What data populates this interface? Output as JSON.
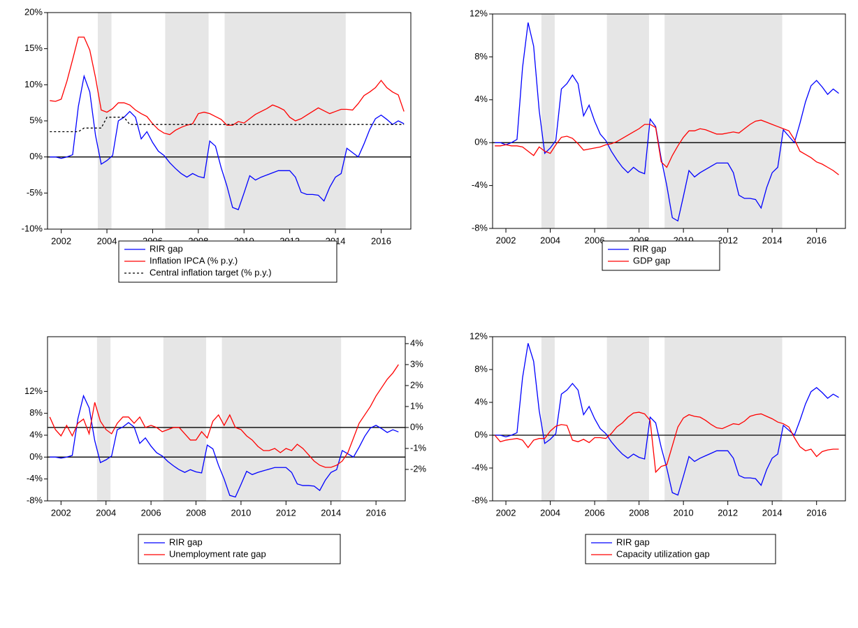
{
  "chart_data": [
    {
      "type": "line",
      "x": [
        2001.5,
        2001.75,
        2002,
        2002.25,
        2002.5,
        2002.75,
        2003,
        2003.25,
        2003.5,
        2003.75,
        2004,
        2004.25,
        2004.5,
        2004.75,
        2005,
        2005.25,
        2005.5,
        2005.75,
        2006,
        2006.25,
        2006.5,
        2006.75,
        2007,
        2007.25,
        2007.5,
        2007.75,
        2008,
        2008.25,
        2008.5,
        2008.75,
        2009,
        2009.25,
        2009.5,
        2009.75,
        2010,
        2010.25,
        2010.5,
        2010.75,
        2011,
        2011.25,
        2011.5,
        2011.75,
        2012,
        2012.25,
        2012.5,
        2012.75,
        2013,
        2013.25,
        2013.5,
        2013.75,
        2014,
        2014.25,
        2014.5,
        2014.75,
        2015,
        2015.25,
        2015.5,
        2015.75,
        2016,
        2016.25,
        2016.5,
        2016.75,
        2017
      ],
      "series": [
        {
          "name": "RIR gap",
          "color": "#0000ff",
          "values": [
            0,
            0,
            -0.2,
            0,
            0.3,
            7,
            11.2,
            9,
            3,
            -1,
            -0.5,
            0.2,
            5,
            5.5,
            6.3,
            5.5,
            2.5,
            3.5,
            2,
            0.8,
            0.2,
            -0.8,
            -1.6,
            -2.3,
            -2.8,
            -2.3,
            -2.7,
            -2.9,
            2.2,
            1.5,
            -1.5,
            -4,
            -7,
            -7.3,
            -5,
            -2.6,
            -3.2,
            -2.8,
            -2.5,
            -2.2,
            -1.9,
            -1.9,
            -1.9,
            -2.8,
            -4.9,
            -5.2,
            -5.2,
            -5.3,
            -6.1,
            -4.2,
            -2.8,
            -2.3,
            1.2,
            0.6,
            0,
            1.8,
            3.8,
            5.3,
            5.8,
            5.2,
            4.5,
            5,
            4.6
          ]
        },
        {
          "name": "Inflation IPCA (% p.y.)",
          "color": "#ff0000",
          "values": [
            7.8,
            7.7,
            8.0,
            10.5,
            13.5,
            16.6,
            16.6,
            14.8,
            11,
            6.5,
            6.2,
            6.7,
            7.5,
            7.5,
            7.2,
            6.5,
            6.0,
            5.6,
            4.6,
            3.8,
            3.3,
            3.1,
            3.7,
            4.1,
            4.4,
            4.6,
            6.0,
            6.2,
            6.0,
            5.6,
            5.2,
            4.4,
            4.4,
            4.9,
            4.7,
            5.3,
            5.9,
            6.3,
            6.7,
            7.2,
            6.9,
            6.5,
            5.5,
            5.0,
            5.3,
            5.8,
            6.3,
            6.8,
            6.4,
            6.0,
            6.3,
            6.6,
            6.6,
            6.5,
            7.4,
            8.5,
            9.0,
            9.6,
            10.6,
            9.6,
            9.0,
            8.6,
            6.3
          ]
        },
        {
          "name": "Central inflation target (% p.y.)",
          "color": "#000000",
          "dash": true,
          "values": [
            3.5,
            3.5,
            3.5,
            3.5,
            3.5,
            3.5,
            4,
            4,
            4,
            4,
            5.5,
            5.5,
            5.5,
            5.5,
            4.5,
            4.5,
            4.5,
            4.5,
            4.5,
            4.5,
            4.5,
            4.5,
            4.5,
            4.5,
            4.5,
            4.5,
            4.5,
            4.5,
            4.5,
            4.5,
            4.5,
            4.5,
            4.5,
            4.5,
            4.5,
            4.5,
            4.5,
            4.5,
            4.5,
            4.5,
            4.5,
            4.5,
            4.5,
            4.5,
            4.5,
            4.5,
            4.5,
            4.5,
            4.5,
            4.5,
            4.5,
            4.5,
            4.5,
            4.5,
            4.5,
            4.5,
            4.5,
            4.5,
            4.5,
            4.5,
            4.5,
            4.5,
            4.5
          ]
        }
      ],
      "xlim": [
        2001.4,
        2017.3
      ],
      "xticks": [
        2002,
        2004,
        2006,
        2008,
        2010,
        2012,
        2014,
        2016
      ],
      "ylim": [
        -10,
        20
      ],
      "yticks": [
        {
          "value": -10,
          "label": "-10%"
        },
        {
          "value": -5,
          "label": "-5%"
        },
        {
          "value": 0,
          "label": "0%"
        },
        {
          "value": 5,
          "label": "5%"
        },
        {
          "value": 10,
          "label": "10%"
        },
        {
          "value": 15,
          "label": "15%"
        },
        {
          "value": 20,
          "label": "20%"
        }
      ],
      "shaded": [
        [
          2003.6,
          2004.2
        ],
        [
          2006.55,
          2008.45
        ],
        [
          2009.15,
          2014.45
        ]
      ],
      "shade_color": "#e6e6e6",
      "zero_line": true,
      "legend": "bottom"
    },
    {
      "type": "line",
      "x": [
        2001.5,
        2001.75,
        2002,
        2002.25,
        2002.5,
        2002.75,
        2003,
        2003.25,
        2003.5,
        2003.75,
        2004,
        2004.25,
        2004.5,
        2004.75,
        2005,
        2005.25,
        2005.5,
        2005.75,
        2006,
        2006.25,
        2006.5,
        2006.75,
        2007,
        2007.25,
        2007.5,
        2007.75,
        2008,
        2008.25,
        2008.5,
        2008.75,
        2009,
        2009.25,
        2009.5,
        2009.75,
        2010,
        2010.25,
        2010.5,
        2010.75,
        2011,
        2011.25,
        2011.5,
        2011.75,
        2012,
        2012.25,
        2012.5,
        2012.75,
        2013,
        2013.25,
        2013.5,
        2013.75,
        2014,
        2014.25,
        2014.5,
        2014.75,
        2015,
        2015.25,
        2015.5,
        2015.75,
        2016,
        2016.25,
        2016.5,
        2016.75,
        2017
      ],
      "series": [
        {
          "name": "RIR gap",
          "color": "#0000ff",
          "values": [
            0,
            0,
            -0.2,
            0,
            0.3,
            7,
            11.2,
            9,
            3,
            -1,
            -0.5,
            0.2,
            5,
            5.5,
            6.3,
            5.5,
            2.5,
            3.5,
            2,
            0.8,
            0.2,
            -0.8,
            -1.6,
            -2.3,
            -2.8,
            -2.3,
            -2.7,
            -2.9,
            2.2,
            1.5,
            -1.5,
            -4,
            -7,
            -7.3,
            -5,
            -2.6,
            -3.2,
            -2.8,
            -2.5,
            -2.2,
            -1.9,
            -1.9,
            -1.9,
            -2.8,
            -4.9,
            -5.2,
            -5.2,
            -5.3,
            -6.1,
            -4.2,
            -2.8,
            -2.3,
            1.2,
            0.6,
            0,
            1.8,
            3.8,
            5.3,
            5.8,
            5.2,
            4.5,
            5,
            4.6
          ]
        },
        {
          "name": "GDP gap",
          "color": "#ff0000",
          "values": [
            -0.3,
            -0.3,
            -0.2,
            -0.3,
            -0.3,
            -0.4,
            -0.8,
            -1.2,
            -0.4,
            -0.8,
            -1.0,
            -0.2,
            0.5,
            0.6,
            0.4,
            -0.1,
            -0.7,
            -0.6,
            -0.5,
            -0.4,
            -0.2,
            -0.1,
            0.1,
            0.4,
            0.7,
            1.0,
            1.3,
            1.7,
            1.7,
            1.4,
            -1.8,
            -2.3,
            -1.2,
            -0.3,
            0.5,
            1.1,
            1.1,
            1.3,
            1.2,
            1.0,
            0.8,
            0.8,
            0.9,
            1.0,
            0.9,
            1.3,
            1.7,
            2.0,
            2.1,
            1.9,
            1.7,
            1.5,
            1.3,
            1.1,
            0.3,
            -0.8,
            -1.1,
            -1.4,
            -1.8,
            -2.0,
            -2.3,
            -2.6,
            -3.0
          ]
        }
      ],
      "xlim": [
        2001.4,
        2017.3
      ],
      "xticks": [
        2002,
        2004,
        2006,
        2008,
        2010,
        2012,
        2014,
        2016
      ],
      "ylim": [
        -8,
        12
      ],
      "yticks": [
        {
          "value": -8,
          "label": "-8%"
        },
        {
          "value": -4,
          "label": "-4%"
        },
        {
          "value": 0,
          "label": "0%"
        },
        {
          "value": 4,
          "label": "4%"
        },
        {
          "value": 8,
          "label": "8%"
        },
        {
          "value": 12,
          "label": "12%"
        }
      ],
      "shaded": [
        [
          2003.6,
          2004.2
        ],
        [
          2006.55,
          2008.45
        ],
        [
          2009.15,
          2014.45
        ]
      ],
      "shade_color": "#e6e6e6",
      "zero_line": true,
      "legend": "bottom"
    },
    {
      "type": "line",
      "x": [
        2001.5,
        2001.75,
        2002,
        2002.25,
        2002.5,
        2002.75,
        2003,
        2003.25,
        2003.5,
        2003.75,
        2004,
        2004.25,
        2004.5,
        2004.75,
        2005,
        2005.25,
        2005.5,
        2005.75,
        2006,
        2006.25,
        2006.5,
        2006.75,
        2007,
        2007.25,
        2007.5,
        2007.75,
        2008,
        2008.25,
        2008.5,
        2008.75,
        2009,
        2009.25,
        2009.5,
        2009.75,
        2010,
        2010.25,
        2010.5,
        2010.75,
        2011,
        2011.25,
        2011.5,
        2011.75,
        2012,
        2012.25,
        2012.5,
        2012.75,
        2013,
        2013.25,
        2013.5,
        2013.75,
        2014,
        2014.25,
        2014.5,
        2014.75,
        2015,
        2015.25,
        2015.5,
        2015.75,
        2016,
        2016.25,
        2016.5,
        2016.75,
        2017
      ],
      "series": [
        {
          "name": "RIR gap",
          "color": "#0000ff",
          "values": [
            0,
            0,
            -0.2,
            0,
            0.3,
            7,
            11.2,
            9,
            3,
            -1,
            -0.5,
            0.2,
            5,
            5.5,
            6.3,
            5.5,
            2.5,
            3.5,
            2,
            0.8,
            0.2,
            -0.8,
            -1.6,
            -2.3,
            -2.8,
            -2.3,
            -2.7,
            -2.9,
            2.2,
            1.5,
            -1.5,
            -4,
            -7,
            -7.3,
            -5,
            -2.6,
            -3.2,
            -2.8,
            -2.5,
            -2.2,
            -1.9,
            -1.9,
            -1.9,
            -2.8,
            -4.9,
            -5.2,
            -5.2,
            -5.3,
            -6.1,
            -4.2,
            -2.8,
            -2.3,
            1.2,
            0.6,
            0,
            1.8,
            3.8,
            5.3,
            5.8,
            5.2,
            4.5,
            5,
            4.6
          ]
        },
        {
          "name": "Unemployment rate gap",
          "color": "#ff0000",
          "axis": "y2",
          "values": [
            0.5,
            -0.1,
            -0.4,
            0.1,
            -0.4,
            0.2,
            0.4,
            -0.3,
            1.2,
            0.3,
            -0.1,
            -0.3,
            0.2,
            0.5,
            0.5,
            0.2,
            0.5,
            0.0,
            0.1,
            0.0,
            -0.2,
            -0.1,
            0.0,
            0.0,
            -0.3,
            -0.6,
            -0.6,
            -0.2,
            -0.5,
            0.3,
            0.6,
            0.1,
            0.6,
            0.0,
            -0.1,
            -0.4,
            -0.6,
            -0.9,
            -1.1,
            -1.1,
            -1.0,
            -1.2,
            -1.0,
            -1.1,
            -0.8,
            -1.0,
            -1.3,
            -1.6,
            -1.8,
            -1.9,
            -1.9,
            -1.8,
            -1.6,
            -1.2,
            -0.5,
            0.2,
            0.6,
            1.0,
            1.5,
            1.9,
            2.3,
            2.6,
            3.0
          ]
        }
      ],
      "xlim": [
        2001.4,
        2017.3
      ],
      "xticks": [
        2002,
        2004,
        2006,
        2008,
        2010,
        2012,
        2014,
        2016
      ],
      "ylim": [
        -8,
        22
      ],
      "yticks": [
        {
          "value": -8,
          "label": "-8%"
        },
        {
          "value": -4,
          "label": "-4%"
        },
        {
          "value": 0,
          "label": "0%"
        },
        {
          "value": 4,
          "label": "4%"
        },
        {
          "value": 8,
          "label": "8%"
        },
        {
          "value": 12,
          "label": "12%"
        }
      ],
      "y2lim": [
        -3.5,
        4.33
      ],
      "y2ticks": [
        {
          "value": -2,
          "label": "-2%"
        },
        {
          "value": -1,
          "label": "-1%"
        },
        {
          "value": 0,
          "label": "0%"
        },
        {
          "value": 1,
          "label": "1%"
        },
        {
          "value": 2,
          "label": "2%"
        },
        {
          "value": 3,
          "label": "3%"
        },
        {
          "value": 4,
          "label": "4%"
        }
      ],
      "shaded": [
        [
          2003.6,
          2004.2
        ],
        [
          2006.55,
          2008.45
        ],
        [
          2009.15,
          2014.45
        ]
      ],
      "shade_color": "#e6e6e6",
      "zero_line": true,
      "legend": "bottom"
    },
    {
      "type": "line",
      "x": [
        2001.5,
        2001.75,
        2002,
        2002.25,
        2002.5,
        2002.75,
        2003,
        2003.25,
        2003.5,
        2003.75,
        2004,
        2004.25,
        2004.5,
        2004.75,
        2005,
        2005.25,
        2005.5,
        2005.75,
        2006,
        2006.25,
        2006.5,
        2006.75,
        2007,
        2007.25,
        2007.5,
        2007.75,
        2008,
        2008.25,
        2008.5,
        2008.75,
        2009,
        2009.25,
        2009.5,
        2009.75,
        2010,
        2010.25,
        2010.5,
        2010.75,
        2011,
        2011.25,
        2011.5,
        2011.75,
        2012,
        2012.25,
        2012.5,
        2012.75,
        2013,
        2013.25,
        2013.5,
        2013.75,
        2014,
        2014.25,
        2014.5,
        2014.75,
        2015,
        2015.25,
        2015.5,
        2015.75,
        2016,
        2016.25,
        2016.5,
        2016.75,
        2017
      ],
      "series": [
        {
          "name": "RIR gap",
          "color": "#0000ff",
          "values": [
            0,
            0,
            -0.2,
            0,
            0.3,
            7,
            11.2,
            9,
            3,
            -1,
            -0.5,
            0.2,
            5,
            5.5,
            6.3,
            5.5,
            2.5,
            3.5,
            2,
            0.8,
            0.2,
            -0.8,
            -1.6,
            -2.3,
            -2.8,
            -2.3,
            -2.7,
            -2.9,
            2.2,
            1.5,
            -1.5,
            -4,
            -7,
            -7.3,
            -5,
            -2.6,
            -3.2,
            -2.8,
            -2.5,
            -2.2,
            -1.9,
            -1.9,
            -1.9,
            -2.8,
            -4.9,
            -5.2,
            -5.2,
            -5.3,
            -6.1,
            -4.2,
            -2.8,
            -2.3,
            1.2,
            0.6,
            0,
            1.8,
            3.8,
            5.3,
            5.8,
            5.2,
            4.5,
            5,
            4.6
          ]
        },
        {
          "name": "Capacity utilization gap",
          "color": "#ff0000",
          "values": [
            0,
            -0.8,
            -0.6,
            -0.5,
            -0.4,
            -0.6,
            -1.5,
            -0.6,
            -0.4,
            -0.4,
            0.5,
            1.1,
            1.3,
            1.2,
            -0.6,
            -0.8,
            -0.5,
            -0.9,
            -0.3,
            -0.3,
            -0.4,
            0.2,
            1.0,
            1.5,
            2.2,
            2.7,
            2.8,
            2.6,
            1.8,
            -4.5,
            -3.8,
            -3.6,
            -1.3,
            1.0,
            2.1,
            2.5,
            2.3,
            2.2,
            1.8,
            1.3,
            0.9,
            0.8,
            1.1,
            1.4,
            1.3,
            1.7,
            2.3,
            2.5,
            2.6,
            2.3,
            2.0,
            1.6,
            1.4,
            1.0,
            -0.3,
            -1.4,
            -1.9,
            -1.7,
            -2.6,
            -2.0,
            -1.8,
            -1.7,
            -1.7
          ]
        }
      ],
      "xlim": [
        2001.4,
        2017.3
      ],
      "xticks": [
        2002,
        2004,
        2006,
        2008,
        2010,
        2012,
        2014,
        2016
      ],
      "ylim": [
        -8,
        12
      ],
      "yticks": [
        {
          "value": -8,
          "label": "-8%"
        },
        {
          "value": -4,
          "label": "-4%"
        },
        {
          "value": 0,
          "label": "0%"
        },
        {
          "value": 4,
          "label": "4%"
        },
        {
          "value": 8,
          "label": "8%"
        },
        {
          "value": 12,
          "label": "12%"
        }
      ],
      "shaded": [
        [
          2003.6,
          2004.2
        ],
        [
          2006.55,
          2008.45
        ],
        [
          2009.15,
          2014.45
        ]
      ],
      "shade_color": "#e6e6e6",
      "zero_line": true,
      "legend": "bottom"
    }
  ]
}
